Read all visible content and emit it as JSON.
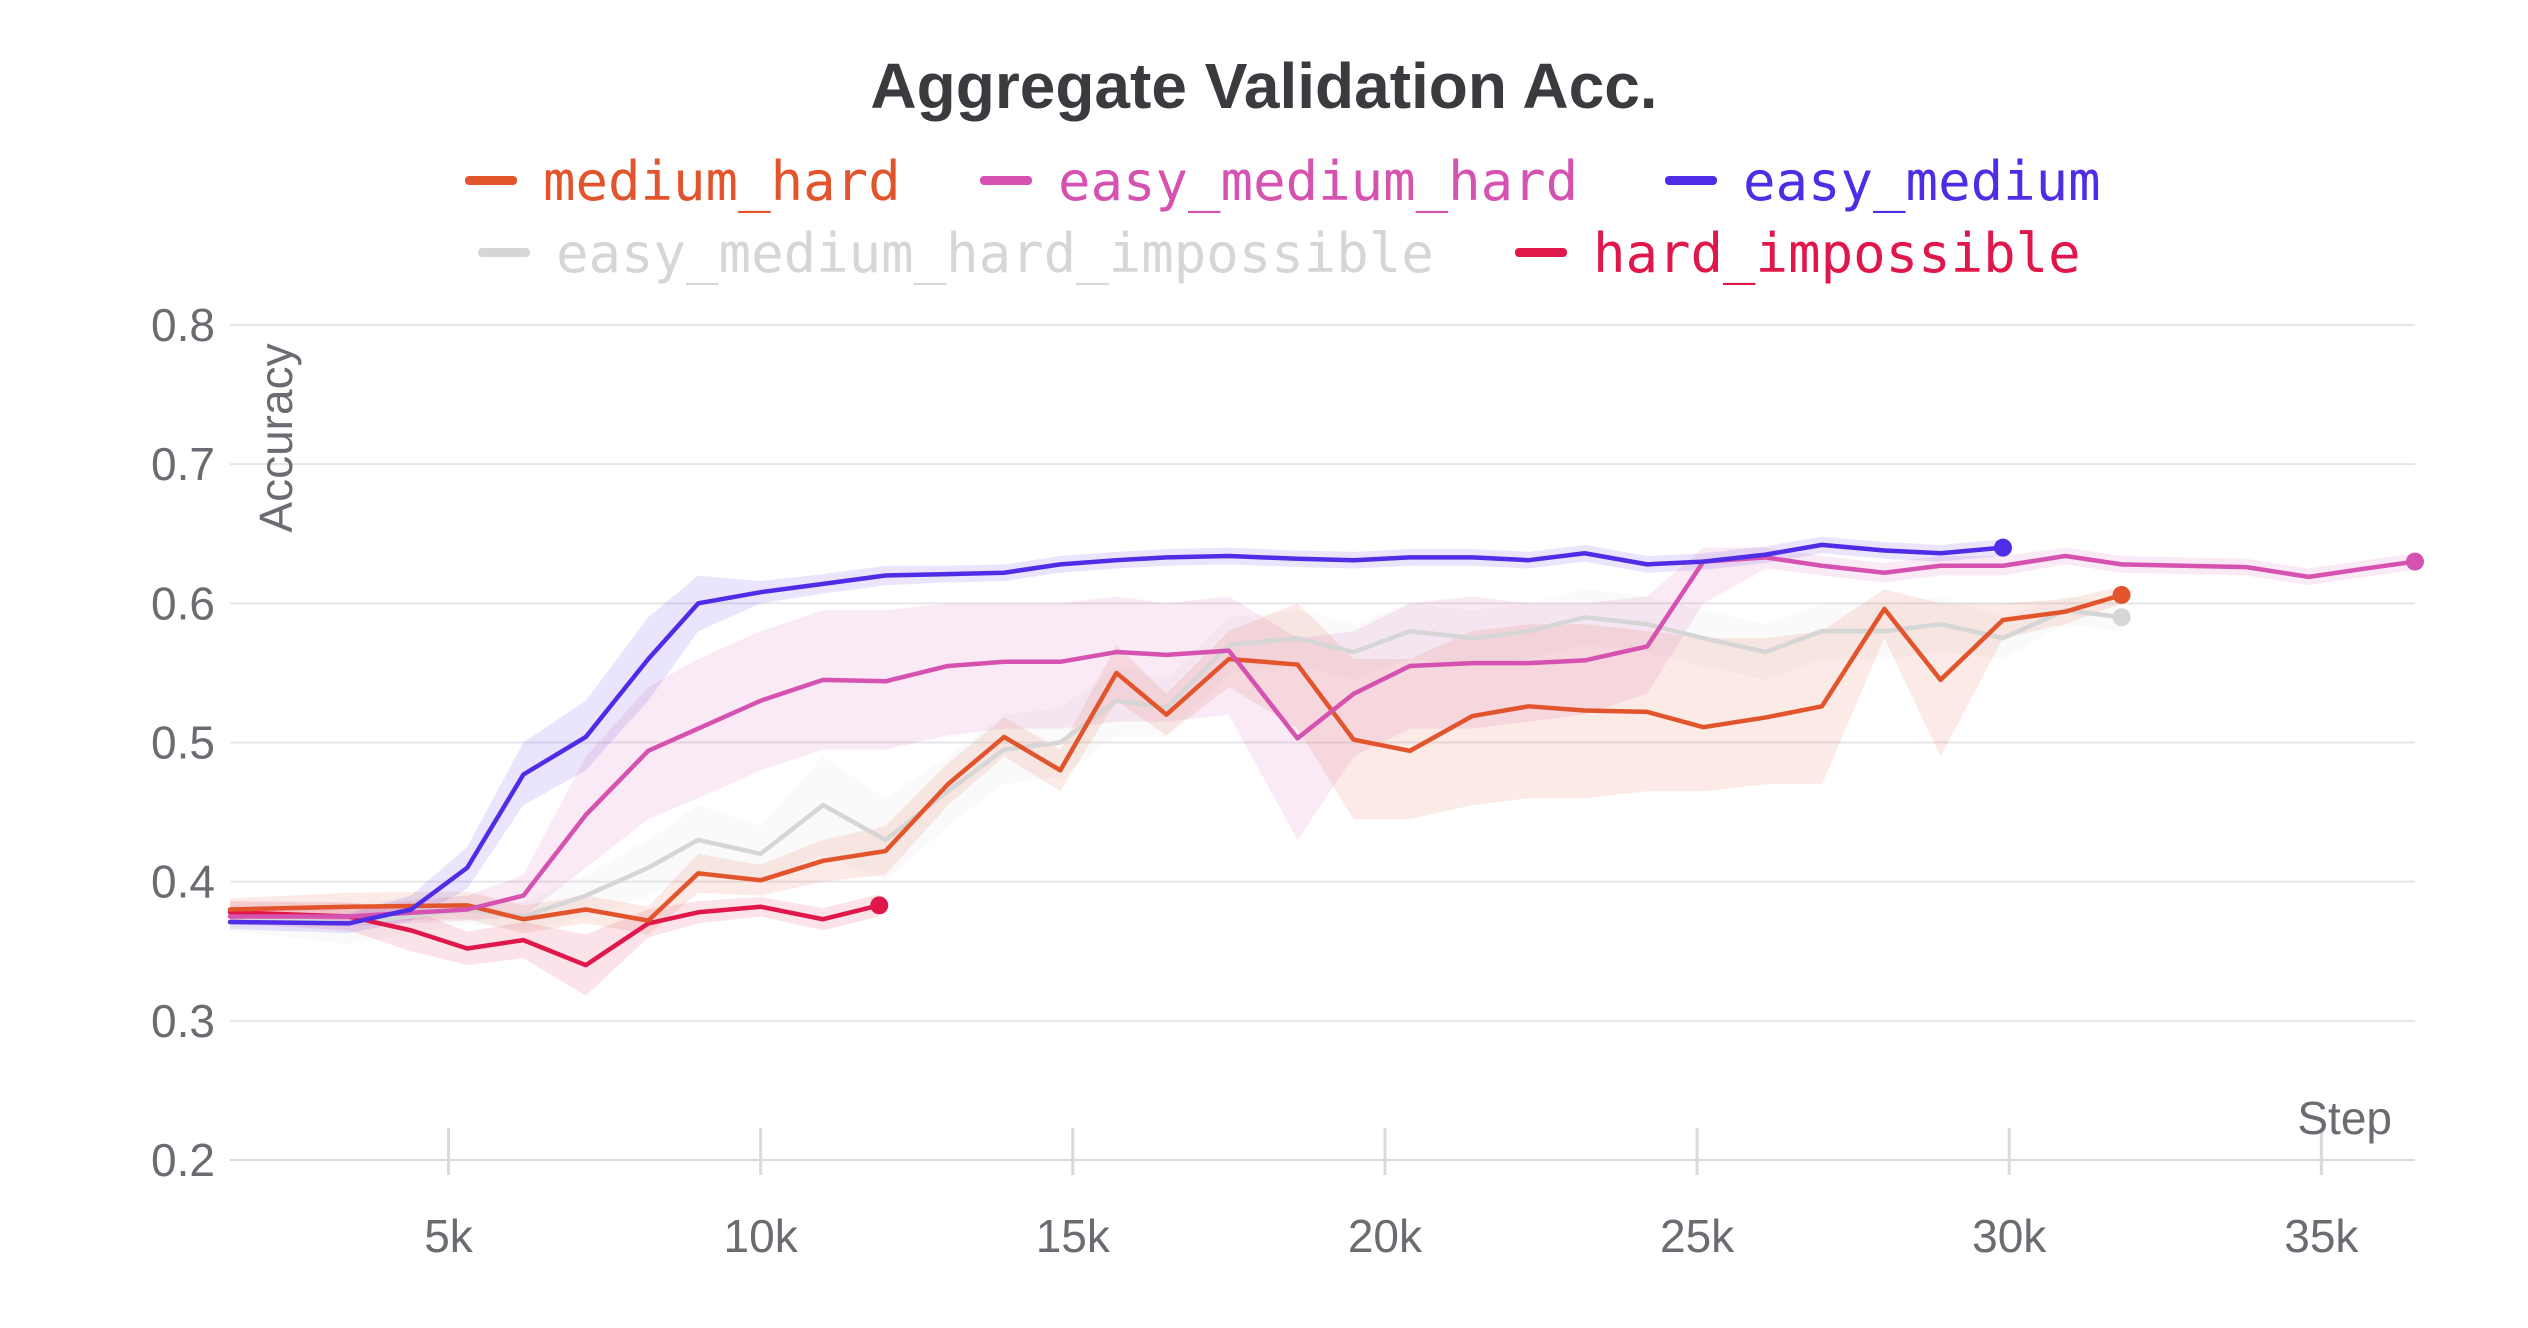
{
  "chart_data": {
    "type": "line",
    "title": "Aggregate Validation Acc.",
    "xlabel": "Step",
    "ylabel": "Accuracy",
    "xlim": [
      1500,
      36500
    ],
    "ylim": [
      0.2,
      0.8
    ],
    "x_ticks": [
      5000,
      10000,
      15000,
      20000,
      25000,
      30000,
      35000
    ],
    "x_tick_labels": [
      "5k",
      "10k",
      "15k",
      "20k",
      "25k",
      "30k",
      "35k"
    ],
    "y_ticks": [
      0.2,
      0.3,
      0.4,
      0.5,
      0.6,
      0.7,
      0.8
    ],
    "y_tick_labels": [
      "0.2",
      "0.3",
      "0.4",
      "0.5",
      "0.6",
      "0.7",
      "0.8"
    ],
    "grid": true,
    "legend_position": "top-center",
    "series": [
      {
        "name": "easy_medium_hard_impossible",
        "color": "#d6d6d6",
        "x": [
          1500,
          3400,
          5300,
          6200,
          7200,
          8200,
          9000,
          10000,
          11000,
          12000,
          13000,
          13900,
          14800,
          15700,
          16500,
          17500,
          18600,
          19500,
          20400,
          21400,
          22300,
          23200,
          24200,
          25100,
          26100,
          27000,
          28000,
          28900,
          29900,
          30900,
          31800
        ],
        "y": [
          0.375,
          0.37,
          0.38,
          0.375,
          0.39,
          0.41,
          0.43,
          0.42,
          0.455,
          0.43,
          0.465,
          0.495,
          0.5,
          0.53,
          0.525,
          0.57,
          0.575,
          0.565,
          0.58,
          0.575,
          0.58,
          0.59,
          0.585,
          0.575,
          0.565,
          0.58,
          0.58,
          0.585,
          0.575,
          0.595,
          0.59
        ],
        "band_lower": [
          0.365,
          0.355,
          0.37,
          0.365,
          0.375,
          0.39,
          0.405,
          0.4,
          0.42,
          0.4,
          0.44,
          0.47,
          0.475,
          0.505,
          0.505,
          0.55,
          0.555,
          0.545,
          0.56,
          0.555,
          0.56,
          0.57,
          0.565,
          0.555,
          0.545,
          0.56,
          0.56,
          0.565,
          0.56,
          0.585,
          0.58
        ],
        "band_upper": [
          0.385,
          0.385,
          0.39,
          0.385,
          0.405,
          0.43,
          0.455,
          0.44,
          0.49,
          0.46,
          0.49,
          0.52,
          0.525,
          0.555,
          0.545,
          0.59,
          0.595,
          0.585,
          0.6,
          0.595,
          0.6,
          0.61,
          0.605,
          0.595,
          0.585,
          0.6,
          0.6,
          0.605,
          0.59,
          0.605,
          0.6
        ]
      },
      {
        "name": "hard_impossible",
        "color": "#e0174a",
        "x": [
          1500,
          3400,
          4400,
          5300,
          6200,
          7200,
          8200,
          9000,
          10000,
          11000,
          11900
        ],
        "y": [
          0.378,
          0.375,
          0.365,
          0.352,
          0.358,
          0.34,
          0.37,
          0.378,
          0.382,
          0.373,
          0.383
        ],
        "band_lower": [
          0.37,
          0.365,
          0.35,
          0.34,
          0.345,
          0.318,
          0.36,
          0.37,
          0.375,
          0.365,
          0.375
        ],
        "band_upper": [
          0.386,
          0.385,
          0.38,
          0.364,
          0.371,
          0.362,
          0.38,
          0.386,
          0.389,
          0.381,
          0.391
        ]
      },
      {
        "name": "medium_hard",
        "color": "#e2542c",
        "x": [
          1500,
          3400,
          5300,
          6200,
          7200,
          8200,
          9000,
          10000,
          11000,
          12000,
          13000,
          13900,
          14800,
          15700,
          16500,
          17500,
          18600,
          19500,
          20400,
          21400,
          22300,
          23200,
          24200,
          25100,
          26100,
          27000,
          28000,
          28900,
          29900,
          30900,
          31800
        ],
        "y": [
          0.38,
          0.382,
          0.383,
          0.373,
          0.38,
          0.372,
          0.406,
          0.401,
          0.415,
          0.422,
          0.47,
          0.504,
          0.48,
          0.55,
          0.52,
          0.56,
          0.556,
          0.502,
          0.494,
          0.519,
          0.526,
          0.523,
          0.522,
          0.511,
          0.518,
          0.526,
          0.596,
          0.545,
          0.588,
          0.594,
          0.606
        ],
        "band_lower": [
          0.372,
          0.372,
          0.373,
          0.363,
          0.37,
          0.362,
          0.392,
          0.39,
          0.4,
          0.405,
          0.455,
          0.49,
          0.465,
          0.53,
          0.505,
          0.54,
          0.51,
          0.445,
          0.445,
          0.455,
          0.46,
          0.46,
          0.465,
          0.465,
          0.47,
          0.47,
          0.575,
          0.49,
          0.575,
          0.585,
          0.6
        ],
        "band_upper": [
          0.388,
          0.392,
          0.393,
          0.383,
          0.39,
          0.382,
          0.42,
          0.412,
          0.43,
          0.44,
          0.485,
          0.518,
          0.495,
          0.57,
          0.535,
          0.58,
          0.6,
          0.56,
          0.56,
          0.58,
          0.585,
          0.585,
          0.58,
          0.575,
          0.575,
          0.58,
          0.61,
          0.6,
          0.6,
          0.603,
          0.612
        ]
      },
      {
        "name": "easy_medium_hard",
        "color": "#d652b0",
        "x": [
          1500,
          3400,
          5300,
          6200,
          7200,
          8200,
          9000,
          10000,
          11000,
          12000,
          13000,
          13900,
          14800,
          15700,
          16500,
          17500,
          18600,
          19500,
          20400,
          21400,
          22300,
          23200,
          24200,
          25100,
          26100,
          27000,
          28000,
          28900,
          29900,
          30900,
          31800,
          32800,
          33800,
          34800,
          35700,
          36500
        ],
        "y": [
          0.375,
          0.375,
          0.38,
          0.39,
          0.448,
          0.494,
          0.51,
          0.53,
          0.545,
          0.544,
          0.555,
          0.558,
          0.558,
          0.565,
          0.563,
          0.566,
          0.503,
          0.535,
          0.555,
          0.557,
          0.557,
          0.559,
          0.569,
          0.63,
          0.633,
          0.627,
          0.622,
          0.627,
          0.627,
          0.634,
          0.628,
          0.627,
          0.626,
          0.619,
          0.625,
          0.63
        ],
        "band_lower": [
          0.37,
          0.368,
          0.372,
          0.375,
          0.41,
          0.445,
          0.46,
          0.48,
          0.495,
          0.495,
          0.505,
          0.51,
          0.51,
          0.515,
          0.515,
          0.52,
          0.43,
          0.49,
          0.51,
          0.51,
          0.515,
          0.52,
          0.535,
          0.6,
          0.625,
          0.62,
          0.615,
          0.62,
          0.62,
          0.628,
          0.622,
          0.621,
          0.62,
          0.613,
          0.619,
          0.624
        ],
        "band_upper": [
          0.38,
          0.382,
          0.39,
          0.405,
          0.49,
          0.54,
          0.56,
          0.58,
          0.595,
          0.595,
          0.6,
          0.6,
          0.6,
          0.605,
          0.6,
          0.605,
          0.575,
          0.58,
          0.6,
          0.605,
          0.6,
          0.6,
          0.605,
          0.64,
          0.64,
          0.634,
          0.629,
          0.634,
          0.634,
          0.64,
          0.634,
          0.633,
          0.632,
          0.625,
          0.631,
          0.636
        ]
      },
      {
        "name": "easy_medium",
        "color": "#4f2ce6",
        "x": [
          1500,
          3400,
          4400,
          5300,
          6200,
          7200,
          8200,
          9000,
          10000,
          11000,
          12000,
          13000,
          13900,
          14800,
          15700,
          16500,
          17500,
          18600,
          19500,
          20400,
          21400,
          22300,
          23200,
          24200,
          25100,
          26100,
          27000,
          28000,
          28900,
          29900
        ],
        "y": [
          0.371,
          0.37,
          0.38,
          0.41,
          0.477,
          0.504,
          0.56,
          0.6,
          0.608,
          0.614,
          0.62,
          0.621,
          0.622,
          0.628,
          0.631,
          0.633,
          0.634,
          0.632,
          0.631,
          0.633,
          0.633,
          0.631,
          0.636,
          0.628,
          0.63,
          0.635,
          0.642,
          0.638,
          0.636,
          0.64
        ],
        "band_lower": [
          0.366,
          0.363,
          0.372,
          0.395,
          0.455,
          0.48,
          0.53,
          0.58,
          0.6,
          0.607,
          0.613,
          0.615,
          0.616,
          0.622,
          0.625,
          0.627,
          0.628,
          0.626,
          0.625,
          0.627,
          0.627,
          0.625,
          0.63,
          0.622,
          0.624,
          0.629,
          0.636,
          0.632,
          0.63,
          0.634
        ],
        "band_upper": [
          0.376,
          0.377,
          0.39,
          0.425,
          0.5,
          0.53,
          0.59,
          0.62,
          0.616,
          0.621,
          0.627,
          0.627,
          0.628,
          0.634,
          0.637,
          0.639,
          0.64,
          0.638,
          0.637,
          0.639,
          0.639,
          0.637,
          0.642,
          0.634,
          0.636,
          0.641,
          0.648,
          0.644,
          0.642,
          0.646
        ]
      }
    ],
    "legend_rows": [
      [
        "medium_hard",
        "easy_medium_hard",
        "easy_medium"
      ],
      [
        "easy_medium_hard_impossible",
        "hard_impossible"
      ]
    ]
  }
}
